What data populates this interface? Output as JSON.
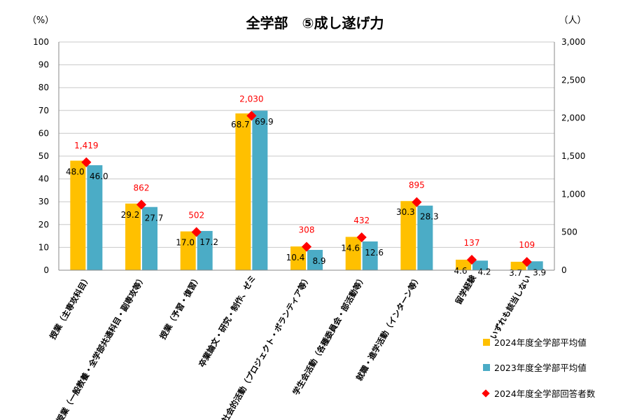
{
  "chart_data": {
    "type": "bar",
    "title": "全学部　⑤成し遂げ力",
    "left_axis_unit": "（%）",
    "right_axis_unit": "（人）",
    "ylim": [
      0,
      100
    ],
    "y2lim": [
      0,
      3000
    ],
    "yticks": [
      "0",
      "10",
      "20",
      "30",
      "40",
      "50",
      "60",
      "70",
      "80",
      "90",
      "100"
    ],
    "y2ticks": [
      "0",
      "500",
      "1,000",
      "1,500",
      "2,000",
      "2,500",
      "3,000"
    ],
    "categories": [
      "授業（主専攻科目）",
      "授業（一般教養・全学部共通科目・副専攻等）",
      "授業（予習・復習）",
      "卒業論文・研究・制作、ゼミ",
      "社会的活動（プロジェクト・ボランティア等）",
      "学生会活動（各種委員会・部活動等）",
      "就職・進学活動（インターン等）",
      "留学経験",
      "いずれも該当しない"
    ],
    "series": [
      {
        "name": "2024年度全学部平均値",
        "color": "#FFC000",
        "values": [
          48.0,
          29.2,
          17.0,
          68.7,
          10.4,
          14.6,
          30.3,
          4.6,
          3.7
        ],
        "labels": [
          "48.0",
          "29.2",
          "17.0",
          "68.7",
          "10.4",
          "14.6",
          "30.3",
          "4.6",
          "3.7"
        ]
      },
      {
        "name": "2023年度全学部平均値",
        "color": "#4BACC6",
        "values": [
          46.0,
          27.7,
          17.2,
          69.9,
          8.9,
          12.6,
          28.3,
          4.2,
          3.9
        ],
        "labels": [
          "46.0",
          "27.7",
          "17.2",
          "69.9",
          "8.9",
          "12.6",
          "28.3",
          "4.2",
          "3.9"
        ]
      }
    ],
    "respondents": {
      "name": "2024年度全学部回答者数",
      "color": "#FF0000",
      "values": [
        1419,
        862,
        502,
        2030,
        308,
        432,
        895,
        137,
        109
      ],
      "labels": [
        "1,419",
        "862",
        "502",
        "2,030",
        "308",
        "432",
        "895",
        "137",
        "109"
      ]
    },
    "grid": true,
    "legend_position": "bottom-right"
  }
}
